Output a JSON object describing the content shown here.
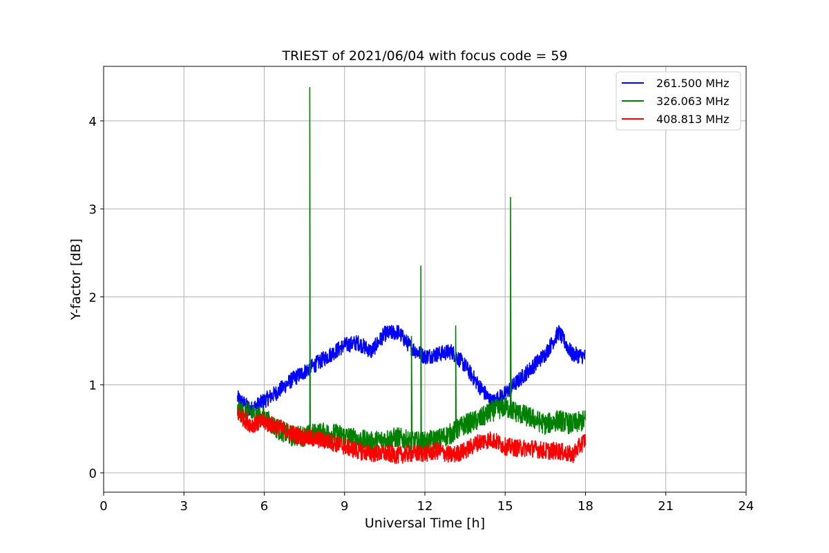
{
  "chart_data": {
    "type": "line",
    "title": "TRIEST of 2021/06/04 with focus code = 59",
    "xlabel": "Universal Time [h]",
    "ylabel": "Y-factor [dB]",
    "xlim": [
      0,
      24
    ],
    "ylim": [
      -0.22,
      4.62
    ],
    "xticks": [
      0,
      3,
      6,
      9,
      12,
      15,
      18,
      21,
      24
    ],
    "xtick_labels": [
      "0",
      "3",
      "6",
      "9",
      "12",
      "15",
      "18",
      "21",
      "24"
    ],
    "yticks": [
      0,
      1,
      2,
      3,
      4
    ],
    "ytick_labels": [
      "0",
      "1",
      "2",
      "3",
      "4"
    ],
    "grid": true,
    "legend_position": "top-right",
    "series": [
      {
        "name": "261.500 MHz",
        "color": "#0000ff",
        "x": [
          5.0,
          5.5,
          6.0,
          6.5,
          7.0,
          7.5,
          8.0,
          8.5,
          9.0,
          9.5,
          10.0,
          10.5,
          11.0,
          11.5,
          12.0,
          12.5,
          13.0,
          13.5,
          14.0,
          14.5,
          15.0,
          15.5,
          16.0,
          16.5,
          17.0,
          17.5,
          18.0
        ],
        "y": [
          0.85,
          0.72,
          0.82,
          0.92,
          1.05,
          1.15,
          1.25,
          1.35,
          1.45,
          1.48,
          1.38,
          1.58,
          1.6,
          1.42,
          1.32,
          1.35,
          1.38,
          1.22,
          1.0,
          0.8,
          0.9,
          1.05,
          1.2,
          1.35,
          1.6,
          1.35,
          1.32
        ]
      },
      {
        "name": "326.063 MHz",
        "color": "#008000",
        "x": [
          5.0,
          5.5,
          6.0,
          6.5,
          7.0,
          7.5,
          8.0,
          8.5,
          9.0,
          9.5,
          10.0,
          10.5,
          11.0,
          11.5,
          12.0,
          12.5,
          13.0,
          13.5,
          14.0,
          14.5,
          15.0,
          15.5,
          16.0,
          16.5,
          17.0,
          17.5,
          18.0
        ],
        "y": [
          0.7,
          0.68,
          0.62,
          0.5,
          0.42,
          0.42,
          0.45,
          0.45,
          0.42,
          0.38,
          0.35,
          0.38,
          0.4,
          0.35,
          0.35,
          0.38,
          0.45,
          0.55,
          0.6,
          0.7,
          0.75,
          0.68,
          0.62,
          0.55,
          0.6,
          0.55,
          0.6
        ]
      },
      {
        "name": "408.813 MHz",
        "color": "#ff0000",
        "x": [
          5.0,
          5.5,
          6.0,
          6.5,
          7.0,
          7.5,
          8.0,
          8.5,
          9.0,
          9.5,
          10.0,
          10.5,
          11.0,
          11.5,
          12.0,
          12.5,
          13.0,
          13.5,
          14.0,
          14.5,
          15.0,
          15.5,
          16.0,
          16.5,
          17.0,
          17.5,
          18.0
        ],
        "y": [
          0.68,
          0.55,
          0.58,
          0.52,
          0.45,
          0.4,
          0.38,
          0.35,
          0.3,
          0.25,
          0.22,
          0.22,
          0.2,
          0.22,
          0.22,
          0.25,
          0.2,
          0.25,
          0.35,
          0.38,
          0.3,
          0.28,
          0.28,
          0.25,
          0.25,
          0.2,
          0.38
        ]
      }
    ],
    "spikes": [
      {
        "series": "326.063 MHz",
        "x": 7.7,
        "y": 4.38
      },
      {
        "series": "326.063 MHz",
        "x": 11.85,
        "y": 2.35
      },
      {
        "series": "326.063 MHz",
        "x": 13.15,
        "y": 1.67
      },
      {
        "series": "326.063 MHz",
        "x": 15.2,
        "y": 3.13
      },
      {
        "series": "326.063 MHz",
        "x": 11.5,
        "y": 1.55
      }
    ]
  }
}
